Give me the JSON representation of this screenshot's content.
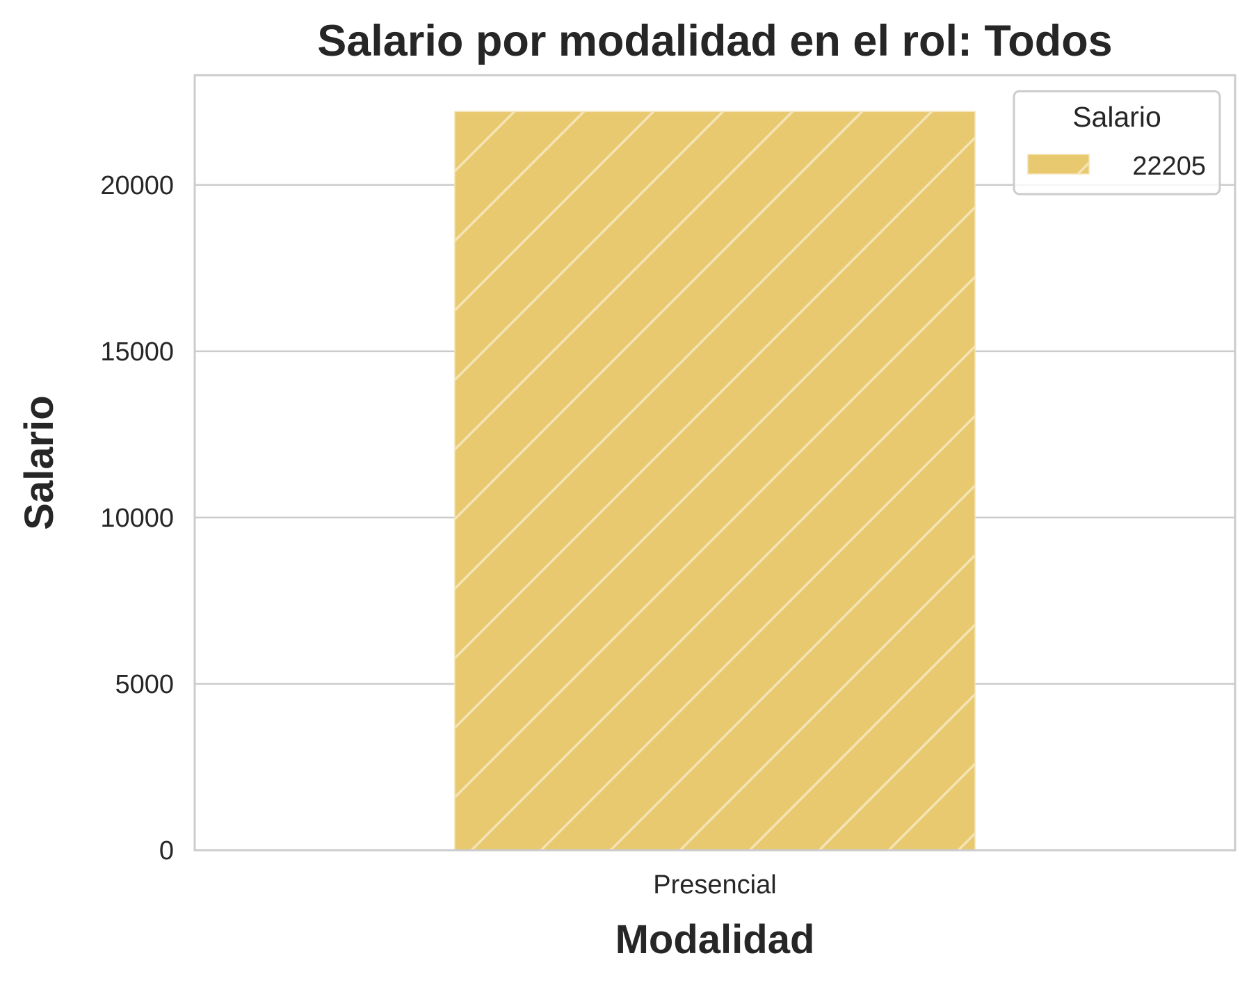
{
  "chart_data": {
    "type": "bar",
    "title": "Salario por modalidad en el rol: Todos",
    "xlabel": "Modalidad",
    "ylabel": "Salario",
    "categories": [
      "Presencial"
    ],
    "values": [
      22205
    ],
    "ylim": [
      0,
      23300
    ],
    "yticks": [
      0,
      5000,
      10000,
      15000,
      20000
    ],
    "grid": "horizontal",
    "legend": {
      "title": "Salario",
      "placement": "top-right",
      "entries": [
        "22205"
      ]
    },
    "colors": {
      "bar": "#e8c96f",
      "hatch": "#f4e4b4",
      "grid": "#cccccc",
      "text": "#262626"
    },
    "hatch": "diagonal"
  }
}
